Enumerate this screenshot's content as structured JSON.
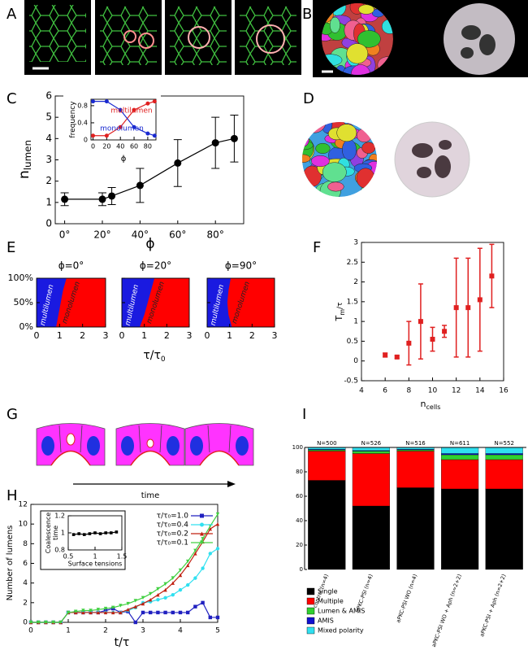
{
  "panel_labels": [
    "A",
    "B",
    "C",
    "D",
    "E",
    "F",
    "G",
    "H",
    "I"
  ],
  "figure_g": {
    "axis_label": "time"
  },
  "chart_data": [
    {
      "type": "line",
      "xlabel": "ϕ",
      "ylabel": "n",
      "ylabel_sub": "lumen",
      "color": "#000000",
      "x": [
        0,
        20,
        25,
        40,
        60,
        80,
        90
      ],
      "values": [
        1.15,
        1.15,
        1.3,
        1.8,
        2.85,
        3.8,
        4.0
      ],
      "errors": [
        0.3,
        0.3,
        0.4,
        0.8,
        1.1,
        1.2,
        1.1
      ],
      "xlim": [
        -5,
        95
      ],
      "xticks": [
        {
          "value": 0,
          "label": "0°"
        },
        {
          "value": 20,
          "label": "20°"
        },
        {
          "value": 40,
          "label": "40°"
        },
        {
          "value": 60,
          "label": "60°"
        },
        {
          "value": 80,
          "label": "80°"
        }
      ],
      "ylim": [
        0,
        6
      ],
      "yticks": [
        0,
        1,
        2,
        3,
        4,
        5,
        6
      ]
    },
    {
      "type": "line",
      "xlabel": "ϕ",
      "ylabel": "frequency",
      "x": [
        0,
        20,
        40,
        60,
        80,
        90
      ],
      "series": [
        {
          "name": "multilumen",
          "color": "#e02020",
          "values": [
            0.1,
            0.1,
            0.3,
            0.7,
            0.85,
            0.9
          ]
        },
        {
          "name": "monolumen",
          "color": "#1a2ad0",
          "values": [
            0.9,
            0.9,
            0.7,
            0.3,
            0.15,
            0.1
          ]
        }
      ],
      "xlim": [
        -3,
        92
      ],
      "xticks": [
        0,
        20,
        40,
        60,
        80
      ],
      "ylim": [
        0,
        0.95
      ],
      "yticks": [
        0,
        0.4,
        0.8
      ]
    },
    {
      "type": "phase",
      "xlabel": "τ/τ",
      "xlabel_sub": "0",
      "region_labels": [
        "multilumen",
        "monolumen"
      ],
      "colors": [
        "#1a1ae0",
        "#ff0000"
      ],
      "boundary_y": [
        0,
        25,
        50,
        75,
        100
      ],
      "panels": [
        {
          "title": "ϕ=0°",
          "boundary": [
            0.85,
            0.95,
            1.05,
            1.15,
            1.3
          ]
        },
        {
          "title": "ϕ=20°",
          "boundary": [
            0.8,
            1.0,
            1.15,
            1.3,
            1.45
          ]
        },
        {
          "title": "ϕ=90°",
          "boundary": [
            1.1,
            0.95,
            0.9,
            0.95,
            1.05
          ]
        }
      ],
      "xlim": [
        0,
        3
      ],
      "xticks": [
        0,
        1,
        2,
        3
      ],
      "ylim": [
        0,
        100
      ],
      "yticks": [
        {
          "value": 0,
          "label": "0%"
        },
        {
          "value": 50,
          "label": "50%"
        },
        {
          "value": 100,
          "label": "100%"
        }
      ]
    },
    {
      "type": "scatter",
      "xlabel": "n",
      "xlabel_sub": "cells",
      "ylabel": "T",
      "ylabel_sub": "m",
      "ylabel_suffix": "/τ",
      "color": "#e02020",
      "x": [
        6,
        7,
        8,
        9,
        10,
        11,
        12,
        13,
        14,
        15
      ],
      "values": [
        0.15,
        0.1,
        0.45,
        1.0,
        0.55,
        0.75,
        1.35,
        1.35,
        1.55,
        2.15
      ],
      "errors": [
        0.05,
        0.03,
        0.55,
        0.95,
        0.3,
        0.15,
        1.25,
        1.25,
        1.3,
        0.8
      ],
      "xlim": [
        4,
        16
      ],
      "xticks": [
        4,
        6,
        8,
        10,
        12,
        14,
        16
      ],
      "ylim": [
        -0.5,
        3
      ],
      "yticks": [
        -0.5,
        0,
        0.5,
        1,
        1.5,
        2,
        2.5,
        3
      ]
    },
    {
      "type": "line",
      "xlabel": "t/τ",
      "ylabel": "Number of lumens",
      "x": [
        0,
        0.2,
        0.4,
        0.6,
        0.8,
        1.0,
        1.2,
        1.4,
        1.6,
        1.8,
        2.0,
        2.2,
        2.4,
        2.6,
        2.8,
        3.0,
        3.2,
        3.4,
        3.6,
        3.8,
        4.0,
        4.2,
        4.4,
        4.6,
        4.8,
        5.0
      ],
      "series": [
        {
          "name": "τ/τ₀=1.0",
          "color": "#2020c0",
          "marker": "square",
          "values": [
            0,
            0,
            0,
            0,
            0,
            1,
            1,
            1,
            1,
            1,
            1.2,
            1.4,
            1,
            1.1,
            0,
            1,
            1,
            1,
            1,
            1,
            1,
            1,
            1.6,
            2,
            0.5,
            0.5
          ]
        },
        {
          "name": "τ/τ₀=0.4",
          "color": "#30e0f0",
          "marker": "circle",
          "values": [
            0,
            0,
            0,
            0,
            0,
            1,
            1,
            1,
            1,
            1,
            1,
            1,
            1,
            1.2,
            1.5,
            2,
            2.1,
            2.3,
            2.5,
            2.8,
            3.3,
            3.8,
            4.5,
            5.5,
            7,
            7.5
          ]
        },
        {
          "name": "τ/τ₀=0.2",
          "color": "#c02010",
          "marker": "triangle",
          "values": [
            0,
            0,
            0,
            0,
            0,
            1,
            1,
            1,
            1,
            1,
            1,
            1,
            1,
            1.3,
            1.6,
            1.9,
            2.3,
            2.8,
            3.3,
            4,
            4.8,
            5.8,
            7,
            8.2,
            9.5,
            10
          ]
        },
        {
          "name": "τ/τ₀=0.1",
          "color": "#40d040",
          "marker": "triangle-down",
          "values": [
            0,
            0,
            0,
            0,
            0,
            1,
            1.1,
            1.2,
            1.2,
            1.3,
            1.4,
            1.5,
            1.7,
            1.9,
            2.2,
            2.5,
            2.9,
            3.4,
            3.9,
            4.5,
            5.3,
            6.2,
            7.3,
            8.5,
            9.8,
            11
          ]
        }
      ],
      "xlim": [
        0,
        5
      ],
      "xticks": [
        0,
        1,
        2,
        3,
        4,
        5
      ],
      "ylim": [
        0,
        12
      ],
      "yticks": [
        0,
        2,
        4,
        6,
        8,
        10,
        12
      ]
    },
    {
      "type": "line",
      "xlabel": "Surface tensions",
      "ylabel": [
        "Coalescence",
        "time"
      ],
      "color": "#000000",
      "x": [
        0.6,
        0.7,
        0.8,
        0.9,
        1.0,
        1.1,
        1.2,
        1.3,
        1.4
      ],
      "values": [
        0.98,
        0.99,
        0.98,
        0.99,
        1.0,
        0.99,
        1.0,
        1.0,
        1.01
      ],
      "xlim": [
        0.5,
        1.5
      ],
      "xticks": [
        0.5,
        1,
        1.5
      ],
      "ylim": [
        0.8,
        1.2
      ],
      "yticks": [
        0.8,
        1,
        1.2
      ]
    },
    {
      "type": "stacked_bar",
      "categories": [
        "control (n=4)",
        "aPKC-PSI (n=4)",
        "aPKC-PSI WO (n=4)",
        "aPKC-PSI WO + Aph (n=2+2)",
        "aPKC-PSI + Aph (n=2+2)"
      ],
      "n_labels": [
        "N=500",
        "N=526",
        "N=516",
        "N=611",
        "N=552"
      ],
      "series": [
        {
          "name": "Single",
          "color": "#000000",
          "values": [
            73,
            52,
            67,
            66,
            66
          ]
        },
        {
          "name": "Multiple",
          "color": "#ff0000",
          "values": [
            24,
            43,
            30,
            24,
            24
          ]
        },
        {
          "name": "Lumen & AMIS",
          "color": "#30d030",
          "values": [
            1,
            2,
            1,
            4,
            4
          ]
        },
        {
          "name": "AMIS",
          "color": "#1010d0",
          "values": [
            0.5,
            0.5,
            0.5,
            1,
            1
          ]
        },
        {
          "name": "Mixed polarity",
          "color": "#30e0f0",
          "values": [
            1.5,
            2.5,
            1.5,
            5,
            5
          ]
        }
      ],
      "ylim": [
        0,
        100
      ],
      "yticks": [
        0,
        20,
        40,
        60,
        80,
        100
      ]
    }
  ]
}
